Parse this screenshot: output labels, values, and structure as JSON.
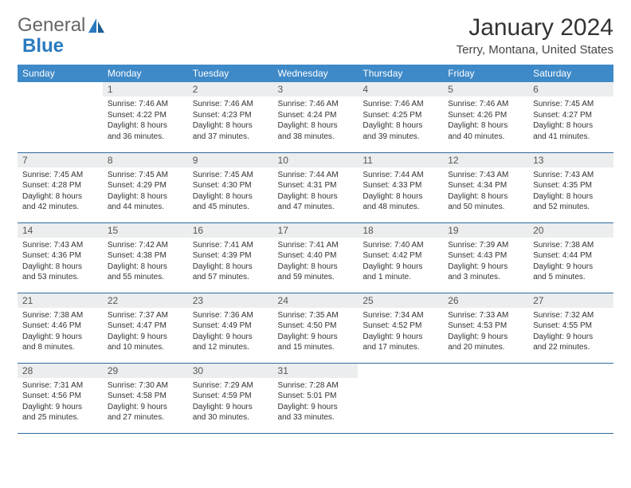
{
  "logo": {
    "text1": "General",
    "text2": "Blue"
  },
  "title": "January 2024",
  "location": "Terry, Montana, United States",
  "header_bg": "#3e89c7",
  "weekdays": [
    "Sunday",
    "Monday",
    "Tuesday",
    "Wednesday",
    "Thursday",
    "Friday",
    "Saturday"
  ],
  "weeks": [
    [
      {
        "n": "",
        "sr": "",
        "ss": "",
        "d1": "",
        "d2": ""
      },
      {
        "n": "1",
        "sr": "Sunrise: 7:46 AM",
        "ss": "Sunset: 4:22 PM",
        "d1": "Daylight: 8 hours",
        "d2": "and 36 minutes."
      },
      {
        "n": "2",
        "sr": "Sunrise: 7:46 AM",
        "ss": "Sunset: 4:23 PM",
        "d1": "Daylight: 8 hours",
        "d2": "and 37 minutes."
      },
      {
        "n": "3",
        "sr": "Sunrise: 7:46 AM",
        "ss": "Sunset: 4:24 PM",
        "d1": "Daylight: 8 hours",
        "d2": "and 38 minutes."
      },
      {
        "n": "4",
        "sr": "Sunrise: 7:46 AM",
        "ss": "Sunset: 4:25 PM",
        "d1": "Daylight: 8 hours",
        "d2": "and 39 minutes."
      },
      {
        "n": "5",
        "sr": "Sunrise: 7:46 AM",
        "ss": "Sunset: 4:26 PM",
        "d1": "Daylight: 8 hours",
        "d2": "and 40 minutes."
      },
      {
        "n": "6",
        "sr": "Sunrise: 7:45 AM",
        "ss": "Sunset: 4:27 PM",
        "d1": "Daylight: 8 hours",
        "d2": "and 41 minutes."
      }
    ],
    [
      {
        "n": "7",
        "sr": "Sunrise: 7:45 AM",
        "ss": "Sunset: 4:28 PM",
        "d1": "Daylight: 8 hours",
        "d2": "and 42 minutes."
      },
      {
        "n": "8",
        "sr": "Sunrise: 7:45 AM",
        "ss": "Sunset: 4:29 PM",
        "d1": "Daylight: 8 hours",
        "d2": "and 44 minutes."
      },
      {
        "n": "9",
        "sr": "Sunrise: 7:45 AM",
        "ss": "Sunset: 4:30 PM",
        "d1": "Daylight: 8 hours",
        "d2": "and 45 minutes."
      },
      {
        "n": "10",
        "sr": "Sunrise: 7:44 AM",
        "ss": "Sunset: 4:31 PM",
        "d1": "Daylight: 8 hours",
        "d2": "and 47 minutes."
      },
      {
        "n": "11",
        "sr": "Sunrise: 7:44 AM",
        "ss": "Sunset: 4:33 PM",
        "d1": "Daylight: 8 hours",
        "d2": "and 48 minutes."
      },
      {
        "n": "12",
        "sr": "Sunrise: 7:43 AM",
        "ss": "Sunset: 4:34 PM",
        "d1": "Daylight: 8 hours",
        "d2": "and 50 minutes."
      },
      {
        "n": "13",
        "sr": "Sunrise: 7:43 AM",
        "ss": "Sunset: 4:35 PM",
        "d1": "Daylight: 8 hours",
        "d2": "and 52 minutes."
      }
    ],
    [
      {
        "n": "14",
        "sr": "Sunrise: 7:43 AM",
        "ss": "Sunset: 4:36 PM",
        "d1": "Daylight: 8 hours",
        "d2": "and 53 minutes."
      },
      {
        "n": "15",
        "sr": "Sunrise: 7:42 AM",
        "ss": "Sunset: 4:38 PM",
        "d1": "Daylight: 8 hours",
        "d2": "and 55 minutes."
      },
      {
        "n": "16",
        "sr": "Sunrise: 7:41 AM",
        "ss": "Sunset: 4:39 PM",
        "d1": "Daylight: 8 hours",
        "d2": "and 57 minutes."
      },
      {
        "n": "17",
        "sr": "Sunrise: 7:41 AM",
        "ss": "Sunset: 4:40 PM",
        "d1": "Daylight: 8 hours",
        "d2": "and 59 minutes."
      },
      {
        "n": "18",
        "sr": "Sunrise: 7:40 AM",
        "ss": "Sunset: 4:42 PM",
        "d1": "Daylight: 9 hours",
        "d2": "and 1 minute."
      },
      {
        "n": "19",
        "sr": "Sunrise: 7:39 AM",
        "ss": "Sunset: 4:43 PM",
        "d1": "Daylight: 9 hours",
        "d2": "and 3 minutes."
      },
      {
        "n": "20",
        "sr": "Sunrise: 7:38 AM",
        "ss": "Sunset: 4:44 PM",
        "d1": "Daylight: 9 hours",
        "d2": "and 5 minutes."
      }
    ],
    [
      {
        "n": "21",
        "sr": "Sunrise: 7:38 AM",
        "ss": "Sunset: 4:46 PM",
        "d1": "Daylight: 9 hours",
        "d2": "and 8 minutes."
      },
      {
        "n": "22",
        "sr": "Sunrise: 7:37 AM",
        "ss": "Sunset: 4:47 PM",
        "d1": "Daylight: 9 hours",
        "d2": "and 10 minutes."
      },
      {
        "n": "23",
        "sr": "Sunrise: 7:36 AM",
        "ss": "Sunset: 4:49 PM",
        "d1": "Daylight: 9 hours",
        "d2": "and 12 minutes."
      },
      {
        "n": "24",
        "sr": "Sunrise: 7:35 AM",
        "ss": "Sunset: 4:50 PM",
        "d1": "Daylight: 9 hours",
        "d2": "and 15 minutes."
      },
      {
        "n": "25",
        "sr": "Sunrise: 7:34 AM",
        "ss": "Sunset: 4:52 PM",
        "d1": "Daylight: 9 hours",
        "d2": "and 17 minutes."
      },
      {
        "n": "26",
        "sr": "Sunrise: 7:33 AM",
        "ss": "Sunset: 4:53 PM",
        "d1": "Daylight: 9 hours",
        "d2": "and 20 minutes."
      },
      {
        "n": "27",
        "sr": "Sunrise: 7:32 AM",
        "ss": "Sunset: 4:55 PM",
        "d1": "Daylight: 9 hours",
        "d2": "and 22 minutes."
      }
    ],
    [
      {
        "n": "28",
        "sr": "Sunrise: 7:31 AM",
        "ss": "Sunset: 4:56 PM",
        "d1": "Daylight: 9 hours",
        "d2": "and 25 minutes."
      },
      {
        "n": "29",
        "sr": "Sunrise: 7:30 AM",
        "ss": "Sunset: 4:58 PM",
        "d1": "Daylight: 9 hours",
        "d2": "and 27 minutes."
      },
      {
        "n": "30",
        "sr": "Sunrise: 7:29 AM",
        "ss": "Sunset: 4:59 PM",
        "d1": "Daylight: 9 hours",
        "d2": "and 30 minutes."
      },
      {
        "n": "31",
        "sr": "Sunrise: 7:28 AM",
        "ss": "Sunset: 5:01 PM",
        "d1": "Daylight: 9 hours",
        "d2": "and 33 minutes."
      },
      {
        "n": "",
        "sr": "",
        "ss": "",
        "d1": "",
        "d2": ""
      },
      {
        "n": "",
        "sr": "",
        "ss": "",
        "d1": "",
        "d2": ""
      },
      {
        "n": "",
        "sr": "",
        "ss": "",
        "d1": "",
        "d2": ""
      }
    ]
  ]
}
